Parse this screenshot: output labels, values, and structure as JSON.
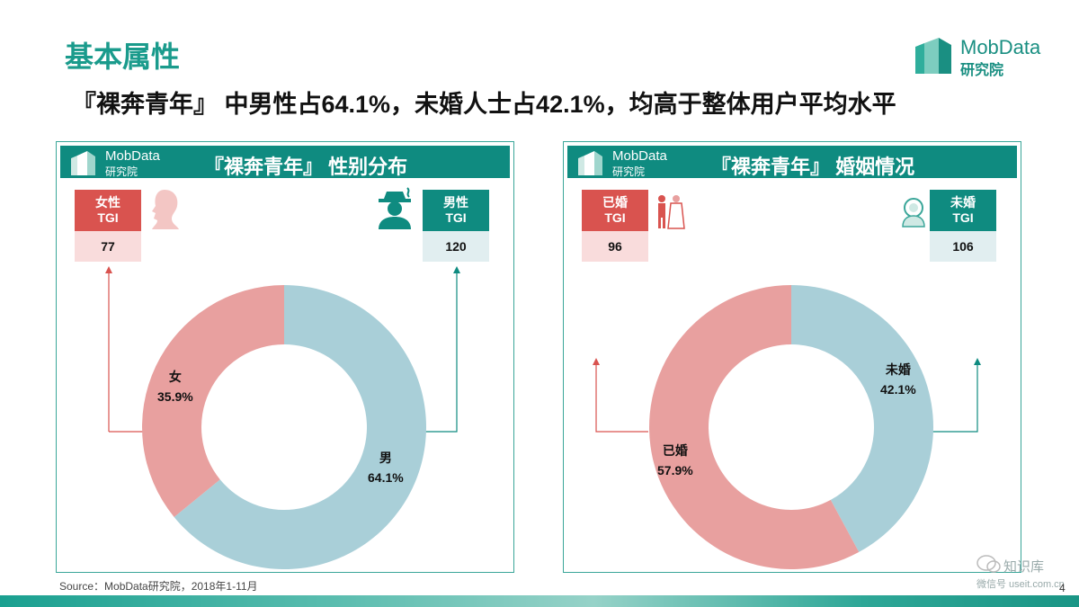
{
  "page": {
    "title": "基本属性",
    "headline": "『裸奔青年』 中男性占64.1%，未婚人士占42.1%，均高于整体用户平均水平",
    "source": "Source：MobData研究院，2018年1-11月",
    "page_number": "4",
    "watermark": {
      "line1": "知识库",
      "line2": "微信号 useit.com.cn"
    }
  },
  "brand": {
    "name": "MobData",
    "sub": "研究院",
    "color": "#1a8f82"
  },
  "colors": {
    "female": "#e8a09f",
    "male": "#a9cfd8",
    "teal": "#0f8b80",
    "red": "#d9534f",
    "title": "#1a9b8c"
  },
  "icons": [
    "building-logo-icon",
    "woman-silhouette-icon",
    "man-with-hat-icon",
    "couple-icon",
    "single-person-icon",
    "wechat-icon"
  ],
  "chart_data": [
    {
      "type": "pie",
      "title": "『裸奔青年』 性别分布",
      "slices": [
        {
          "name": "男",
          "value": 64.1,
          "label": "64.1%",
          "color": "#a9cfd8"
        },
        {
          "name": "女",
          "value": 35.9,
          "label": "35.9%",
          "color": "#e8a09f"
        }
      ],
      "tgi": [
        {
          "label": "女性",
          "sub": "TGI",
          "value": "77",
          "color": "#d9534f"
        },
        {
          "label": "男性",
          "sub": "TGI",
          "value": "120",
          "color": "#0f8b80"
        }
      ]
    },
    {
      "type": "pie",
      "title": "『裸奔青年』 婚姻情况",
      "slices": [
        {
          "name": "未婚",
          "value": 42.1,
          "label": "42.1%",
          "color": "#a9cfd8"
        },
        {
          "name": "已婚",
          "value": 57.9,
          "label": "57.9%",
          "color": "#e8a09f"
        }
      ],
      "tgi": [
        {
          "label": "已婚",
          "sub": "TGI",
          "value": "96",
          "color": "#d9534f"
        },
        {
          "label": "未婚",
          "sub": "TGI",
          "value": "106",
          "color": "#0f8b80"
        }
      ]
    }
  ]
}
